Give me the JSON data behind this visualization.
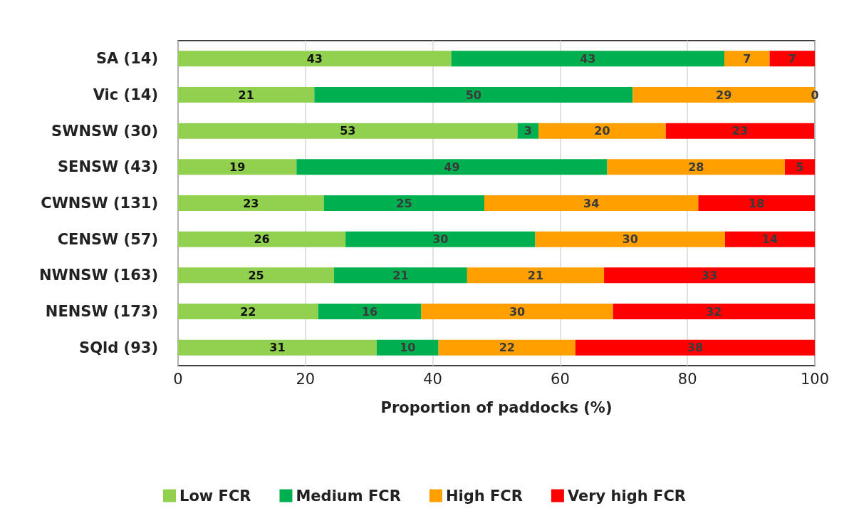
{
  "chart_data": {
    "type": "bar",
    "orientation": "horizontal",
    "stacked": true,
    "xlabel": "Proportion of paddocks (%)",
    "categories": [
      "SA (14)",
      "Vic (14)",
      "SWNSW (30)",
      "SENSW (43)",
      "CWNSW (131)",
      "CENSW (57)",
      "NWNSW (163)",
      "NENSW (173)",
      "SQld (93)"
    ],
    "series": [
      {
        "name": "Low FCR",
        "color": "#92d050",
        "values": [
          42.9,
          21.4,
          53.3,
          18.6,
          22.9,
          26.3,
          24.5,
          22.0,
          31.2
        ],
        "value_labels": [
          "43",
          "21",
          "53",
          "19",
          "23",
          "26",
          "25",
          "22",
          "31"
        ]
      },
      {
        "name": "Medium FCR",
        "color": "#00b050",
        "values": [
          42.9,
          50.0,
          3.3,
          48.8,
          25.2,
          29.8,
          20.9,
          16.2,
          9.7
        ],
        "value_labels": [
          "43",
          "50",
          "3",
          "49",
          "25",
          "30",
          "21",
          "16",
          "10"
        ]
      },
      {
        "name": "High FCR",
        "color": "#ffa000",
        "values": [
          7.1,
          28.6,
          20.0,
          27.9,
          33.6,
          29.8,
          21.5,
          30.1,
          21.5
        ],
        "value_labels": [
          "7",
          "29",
          "20",
          "28",
          "34",
          "30",
          "21",
          "30",
          "22"
        ]
      },
      {
        "name": "Very high FCR",
        "color": "#ff0000",
        "values": [
          7.1,
          0,
          23.3,
          4.7,
          18.3,
          14.1,
          33.1,
          31.7,
          37.6
        ],
        "value_labels": [
          "7",
          "0",
          "23",
          "5",
          "18",
          "14",
          "33",
          "32",
          "38"
        ]
      }
    ],
    "xlim": [
      0,
      100
    ],
    "xticks": [
      0,
      20,
      40,
      60,
      80,
      100
    ],
    "grid": "x",
    "legend": "bottom"
  }
}
